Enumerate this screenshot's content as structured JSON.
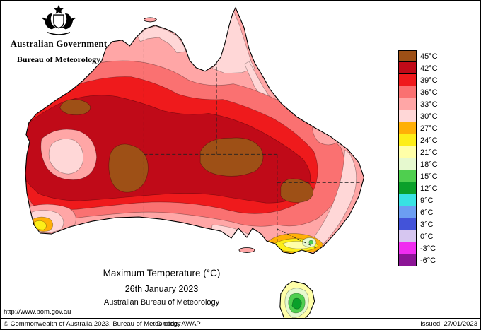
{
  "header": {
    "government": "Australian Government",
    "bureau": "Bureau of Meteorology"
  },
  "caption": {
    "title": "Maximum Temperature (°C)",
    "date": "26th January 2023",
    "source": "Australian Bureau of Meteorology"
  },
  "links": {
    "url": "http://www.bom.gov.au"
  },
  "footer": {
    "copyright": "© Commonwealth of Australia 2023, Bureau of Meteorology",
    "id_code": "ID code: AWAP",
    "issued": "Issued: 27/01/2023"
  },
  "legend": {
    "entries": [
      {
        "label": "45°C",
        "color": "#9e5016"
      },
      {
        "label": "42°C",
        "color": "#c00a18"
      },
      {
        "label": "39°C",
        "color": "#ef1a1c"
      },
      {
        "label": "36°C",
        "color": "#fa7171"
      },
      {
        "label": "33°C",
        "color": "#ffa6a6"
      },
      {
        "label": "30°C",
        "color": "#ffd7d7"
      },
      {
        "label": "27°C",
        "color": "#ffb007"
      },
      {
        "label": "24°C",
        "color": "#fdee18"
      },
      {
        "label": "21°C",
        "color": "#ffffa8"
      },
      {
        "label": "18°C",
        "color": "#e6f9cf"
      },
      {
        "label": "15°C",
        "color": "#4fcf4f"
      },
      {
        "label": "12°C",
        "color": "#0aa02a"
      },
      {
        "label": "9°C",
        "color": "#38e3e3"
      },
      {
        "label": "6°C",
        "color": "#6c9ef2"
      },
      {
        "label": "3°C",
        "color": "#4353d9"
      },
      {
        "label": "0°C",
        "color": "#d6c6f0"
      },
      {
        "label": "-3°C",
        "color": "#f02df0"
      },
      {
        "label": "-6°C",
        "color": "#8c1596"
      }
    ]
  }
}
